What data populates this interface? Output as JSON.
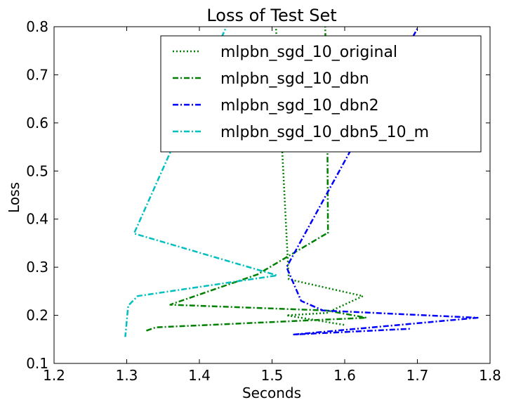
{
  "chart_data": {
    "type": "line",
    "title": "Loss of Test Set",
    "xlabel": "Seconds",
    "ylabel": "Loss",
    "xlim": [
      1.2,
      1.8
    ],
    "ylim": [
      0.1,
      0.8
    ],
    "xticks": [
      1.2,
      1.3,
      1.4,
      1.5,
      1.6,
      1.7,
      1.8
    ],
    "yticks": [
      0.1,
      0.2,
      0.3,
      0.4,
      0.5,
      0.6,
      0.7,
      0.8
    ],
    "xtick_labels": [
      "1.2",
      "1.3",
      "1.4",
      "1.5",
      "1.6",
      "1.7",
      "1.8"
    ],
    "ytick_labels": [
      "0.1",
      "0.2",
      "0.3",
      "0.4",
      "0.5",
      "0.6",
      "0.7",
      "0.8"
    ],
    "grid": false,
    "legend_position": "top-right",
    "series": [
      {
        "name": "mlpbn_sgd_10_original",
        "color": "#008000",
        "style": "dotted",
        "x": [
          1.505,
          1.523,
          1.625,
          1.575,
          1.52,
          1.6
        ],
        "y": [
          0.81,
          0.275,
          0.24,
          0.205,
          0.2,
          0.18
        ]
      },
      {
        "name": "mlpbn_sgd_10_dbn",
        "color": "#008000",
        "style": "dashdot",
        "x": [
          1.573,
          1.576,
          1.577,
          1.575,
          1.48,
          1.365,
          1.36,
          1.575,
          1.63,
          1.34,
          1.327
        ],
        "y": [
          0.81,
          0.6,
          0.37,
          0.37,
          0.285,
          0.225,
          0.222,
          0.21,
          0.195,
          0.175,
          0.168
        ]
      },
      {
        "name": "mlpbn_sgd_10_dbn2",
        "color": "#0000ff",
        "style": "dashdot",
        "x": [
          1.705,
          1.52,
          1.54,
          1.57,
          1.783,
          1.53,
          1.69
        ],
        "y": [
          0.81,
          0.3,
          0.23,
          0.21,
          0.195,
          0.16,
          0.172
        ]
      },
      {
        "name": "mlpbn_sgd_10_dbn5_10_m",
        "color": "#00bfbf",
        "style": "dashdot",
        "x": [
          1.44,
          1.31,
          1.507,
          1.315,
          1.302,
          1.298
        ],
        "y": [
          0.81,
          0.37,
          0.283,
          0.24,
          0.22,
          0.155
        ]
      }
    ]
  }
}
